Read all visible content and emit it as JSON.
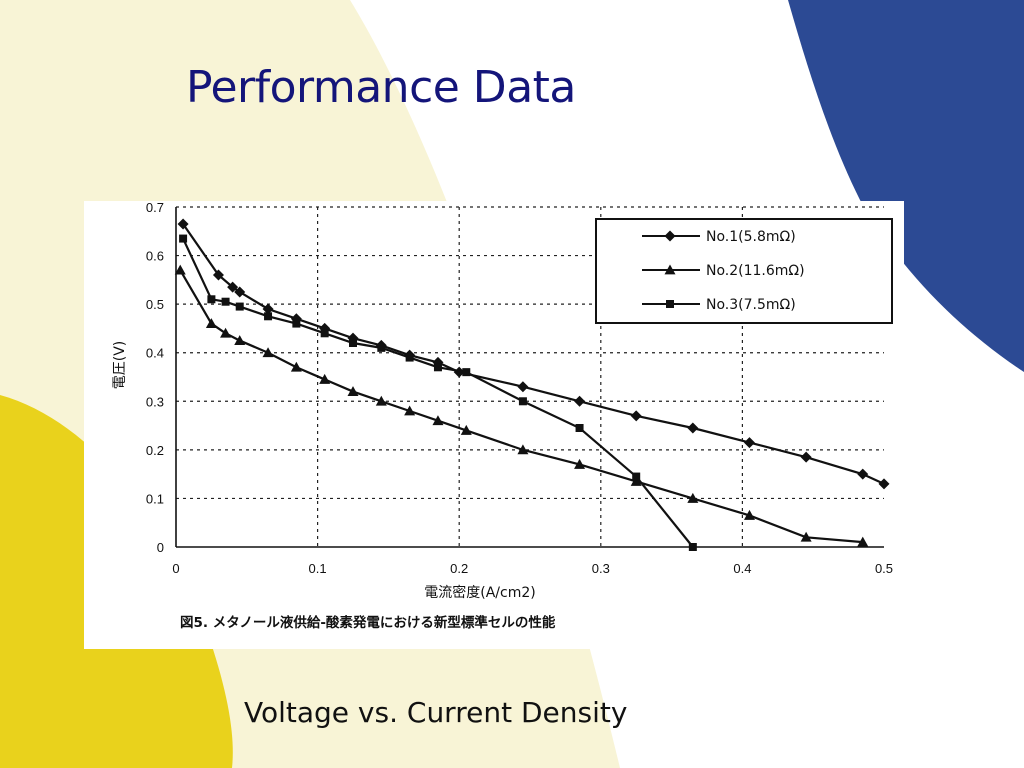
{
  "slide": {
    "title": "Performance Data",
    "caption": "Voltage vs. Current Density",
    "colors": {
      "blue": "#2c4a94",
      "yellow": "#e9d21c",
      "cream": "#f8f4d6",
      "title": "#14157a"
    }
  },
  "chart_data": {
    "type": "line",
    "title": "",
    "figure_caption": "図5. メタノール液供給-酸素発電における新型標準セルの性能",
    "xlabel": "電流密度(A/cm2)",
    "ylabel": "電圧(V)",
    "xlim": [
      0,
      0.5
    ],
    "ylim": [
      0,
      0.7
    ],
    "x_ticks": [
      "0",
      "0.1",
      "0.2",
      "0.3",
      "0.4",
      "0.5"
    ],
    "y_ticks": [
      "0",
      "0.1",
      "0.2",
      "0.3",
      "0.4",
      "0.5",
      "0.6",
      "0.7"
    ],
    "grid": true,
    "legend_position": "top-right",
    "series": [
      {
        "name": "No.1(5.8mΩ)",
        "marker": "diamond",
        "x": [
          0.005,
          0.03,
          0.04,
          0.045,
          0.065,
          0.085,
          0.105,
          0.125,
          0.145,
          0.165,
          0.185,
          0.2,
          0.245,
          0.285,
          0.325,
          0.365,
          0.405,
          0.445,
          0.485,
          0.5
        ],
        "y": [
          0.665,
          0.56,
          0.535,
          0.525,
          0.49,
          0.47,
          0.45,
          0.43,
          0.415,
          0.395,
          0.38,
          0.36,
          0.33,
          0.3,
          0.27,
          0.245,
          0.215,
          0.185,
          0.15,
          0.13
        ]
      },
      {
        "name": "No.2(11.6mΩ)",
        "marker": "triangle",
        "x": [
          0.003,
          0.025,
          0.035,
          0.045,
          0.065,
          0.085,
          0.105,
          0.125,
          0.145,
          0.165,
          0.185,
          0.205,
          0.245,
          0.285,
          0.325,
          0.365,
          0.405,
          0.445,
          0.485
        ],
        "y": [
          0.57,
          0.46,
          0.44,
          0.425,
          0.4,
          0.37,
          0.345,
          0.32,
          0.3,
          0.28,
          0.26,
          0.24,
          0.2,
          0.17,
          0.135,
          0.1,
          0.065,
          0.02,
          0.01
        ]
      },
      {
        "name": "No.3(7.5mΩ)",
        "marker": "square",
        "x": [
          0.005,
          0.025,
          0.035,
          0.045,
          0.065,
          0.085,
          0.105,
          0.125,
          0.145,
          0.165,
          0.185,
          0.205,
          0.245,
          0.285,
          0.325,
          0.365
        ],
        "y": [
          0.635,
          0.51,
          0.505,
          0.495,
          0.475,
          0.46,
          0.44,
          0.42,
          0.41,
          0.39,
          0.37,
          0.36,
          0.3,
          0.245,
          0.145,
          0.0
        ]
      }
    ]
  }
}
